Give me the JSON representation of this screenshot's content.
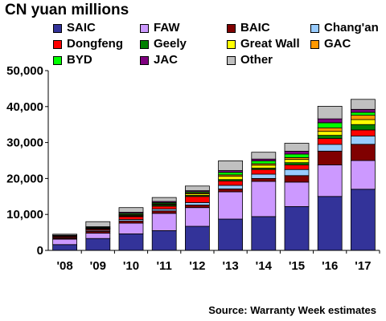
{
  "chart_data": {
    "type": "bar",
    "stacked": true,
    "title": "CN yuan millions",
    "xlabel": "",
    "ylabel": "",
    "ylim": [
      0,
      50000
    ],
    "yticks": [
      "0",
      "10,000",
      "20,000",
      "30,000",
      "40,000",
      "50,000"
    ],
    "categories": [
      "'08",
      "'09",
      "'10",
      "'11",
      "'12",
      "'13",
      "'14",
      "'15",
      "'16",
      "'17"
    ],
    "series": [
      {
        "name": "SAIC",
        "color": "#333399",
        "values": [
          1600,
          3300,
          4600,
          5500,
          6700,
          8700,
          9400,
          12200,
          15000,
          17000
        ]
      },
      {
        "name": "FAW",
        "color": "#CC99FF",
        "values": [
          1500,
          1500,
          3000,
          4800,
          5200,
          7600,
          9800,
          6800,
          8800,
          8000
        ]
      },
      {
        "name": "BAIC",
        "color": "#800000",
        "values": [
          300,
          500,
          600,
          700,
          700,
          800,
          800,
          1800,
          3800,
          4500
        ]
      },
      {
        "name": "Chang'an",
        "color": "#99CCFF",
        "values": [
          200,
          300,
          400,
          500,
          700,
          1000,
          1200,
          1700,
          1900,
          2300
        ]
      },
      {
        "name": "Dongfeng",
        "color": "#FF0000",
        "values": [
          300,
          300,
          800,
          800,
          1700,
          1200,
          1300,
          1300,
          1600,
          1700
        ]
      },
      {
        "name": "Geely",
        "color": "#008000",
        "values": [
          0,
          100,
          200,
          300,
          300,
          400,
          400,
          600,
          900,
          1500
        ]
      },
      {
        "name": "Great Wall",
        "color": "#FFFF00",
        "values": [
          0,
          100,
          200,
          200,
          400,
          900,
          800,
          900,
          1100,
          1400
        ]
      },
      {
        "name": "GAC",
        "color": "#FF9900",
        "values": [
          100,
          100,
          200,
          200,
          300,
          400,
          400,
          500,
          1000,
          1200
        ]
      },
      {
        "name": "BYD",
        "color": "#00FF00",
        "values": [
          100,
          200,
          300,
          300,
          300,
          700,
          800,
          1000,
          1400,
          800
        ]
      },
      {
        "name": "JAC",
        "color": "#800080",
        "values": [
          100,
          200,
          300,
          300,
          300,
          500,
          500,
          800,
          1100,
          800
        ]
      },
      {
        "name": "Other",
        "color": "#C0C0C0",
        "values": [
          300,
          1400,
          1300,
          1100,
          1300,
          2700,
          1900,
          2200,
          3500,
          2800
        ]
      }
    ],
    "legend_position": "top",
    "grid": false
  },
  "source_note": "Source: Warranty Week estimates"
}
